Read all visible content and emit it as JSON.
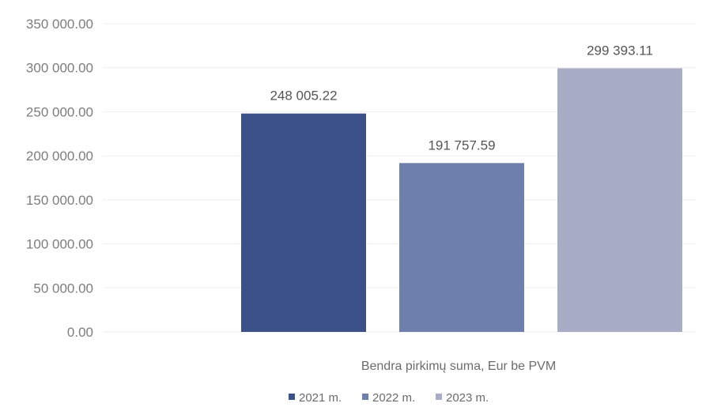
{
  "chart_data": {
    "type": "bar",
    "categories": [
      "Bendra pirkimų suma, Eur be PVM"
    ],
    "xlabel": "Bendra pirkimų suma, Eur be PVM",
    "ylabel": "",
    "ylim": [
      0,
      350000
    ],
    "y_ticks": [
      0,
      50000,
      100000,
      150000,
      200000,
      250000,
      300000,
      350000
    ],
    "y_tick_labels": [
      "0.00",
      "50 000.00",
      "100 000.00",
      "150 000.00",
      "200 000.00",
      "250 000.00",
      "300 000.00",
      "350 000.00"
    ],
    "grid": true,
    "legend_position": "bottom",
    "series": [
      {
        "name": "2021 m.",
        "values": [
          248005.22
        ],
        "label": "248 005.22",
        "color": "#3d5189"
      },
      {
        "name": "2022 m.",
        "values": [
          191757.59
        ],
        "label": "191 757.59",
        "color": "#6f7fab"
      },
      {
        "name": "2023 m.",
        "values": [
          299393.11
        ],
        "label": "299 393.11",
        "color": "#a9acc5"
      }
    ]
  }
}
